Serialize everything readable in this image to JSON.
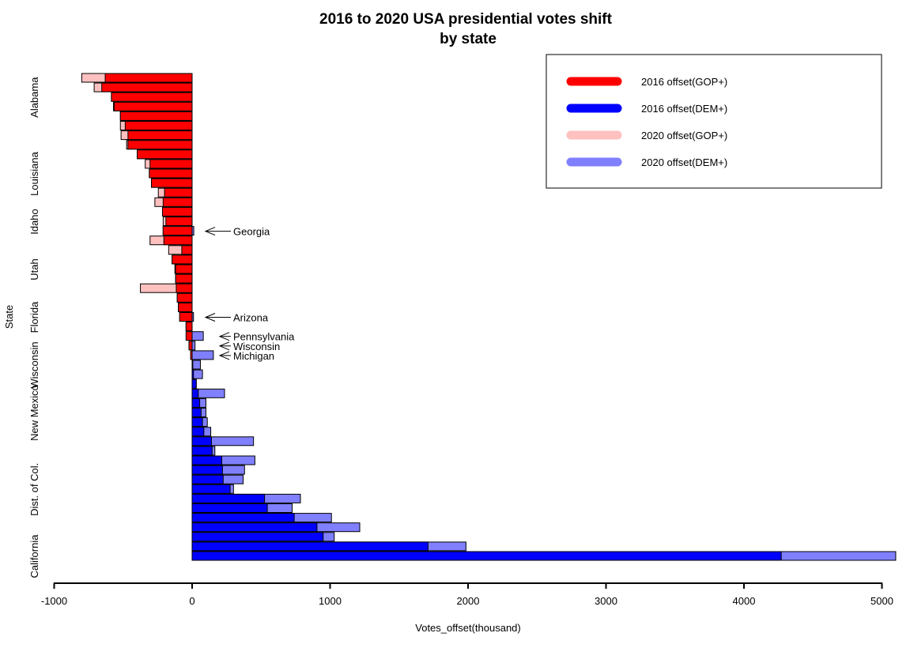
{
  "chart_data": {
    "type": "bar",
    "orientation": "horizontal",
    "title": "2016 to 2020 USA presidential votes shift",
    "subtitle": "by state",
    "xlabel": "Votes_offset(thousand)",
    "ylabel": "State",
    "xlim": [
      -1000,
      5100
    ],
    "xticks": [
      "-1000",
      "0",
      "1000",
      "2000",
      "3000",
      "4000",
      "5000"
    ],
    "xtick_values": [
      -1000,
      0,
      1000,
      2000,
      3000,
      4000,
      5000
    ],
    "ytick_labels": [
      {
        "label": "Alabama",
        "row": 2
      },
      {
        "label": "Louisiana",
        "row": 10
      },
      {
        "label": "Idaho",
        "row": 15
      },
      {
        "label": "Utah",
        "row": 20
      },
      {
        "label": "Florida",
        "row": 25
      },
      {
        "label": "Wisconsin",
        "row": 30
      },
      {
        "label": "New Mexico",
        "row": 35
      },
      {
        "label": "Dist. of Col.",
        "row": 43
      },
      {
        "label": "California",
        "row": 50
      }
    ],
    "series": [
      {
        "name": "2016 offset(GOP+)",
        "color": "#ff0000"
      },
      {
        "name": "2016 offset(DEM+)",
        "color": "#0000ff"
      },
      {
        "name": "2020 offset(GOP+)",
        "color": "#ffc0c0"
      },
      {
        "name": "2020 offset(DEM+)",
        "color": "#8080ff"
      }
    ],
    "bars": [
      {
        "v2016": -630,
        "v2020": -800
      },
      {
        "v2016": -655,
        "v2020": -710
      },
      {
        "v2016": -585,
        "v2020": -585
      },
      {
        "v2016": -565,
        "v2020": -570
      },
      {
        "v2016": -520,
        "v2020": -520
      },
      {
        "v2016": -485,
        "v2020": -520
      },
      {
        "v2016": -465,
        "v2020": -515
      },
      {
        "v2016": -465,
        "v2020": -475
      },
      {
        "v2016": -398,
        "v2020": -398
      },
      {
        "v2016": -305,
        "v2020": -340
      },
      {
        "v2016": -310,
        "v2020": -310
      },
      {
        "v2016": -295,
        "v2020": -295
      },
      {
        "v2016": -200,
        "v2020": -245
      },
      {
        "v2016": -210,
        "v2020": -270
      },
      {
        "v2016": -215,
        "v2020": -215
      },
      {
        "v2016": -190,
        "v2020": -210
      },
      {
        "v2016": -211,
        "v2020": 12
      },
      {
        "v2016": -205,
        "v2020": -305
      },
      {
        "v2016": -75,
        "v2020": -170
      },
      {
        "v2016": -145,
        "v2020": -145
      },
      {
        "v2016": -120,
        "v2020": -125
      },
      {
        "v2016": -119,
        "v2020": -120
      },
      {
        "v2016": -115,
        "v2020": -375
      },
      {
        "v2016": -108,
        "v2020": -108
      },
      {
        "v2016": -100,
        "v2020": -100
      },
      {
        "v2016": -91,
        "v2020": 10
      },
      {
        "v2016": -44,
        "v2020": -44
      },
      {
        "v2016": -44,
        "v2020": 81
      },
      {
        "v2016": -23,
        "v2020": 21
      },
      {
        "v2016": -11,
        "v2020": 154
      },
      {
        "v2016": 5,
        "v2020": 60
      },
      {
        "v2016": 10,
        "v2020": 75
      },
      {
        "v2016": 30,
        "v2020": 30
      },
      {
        "v2016": 45,
        "v2020": 235
      },
      {
        "v2016": 55,
        "v2020": 100
      },
      {
        "v2016": 65,
        "v2020": 100
      },
      {
        "v2016": 75,
        "v2020": 110
      },
      {
        "v2016": 85,
        "v2020": 135
      },
      {
        "v2016": 140,
        "v2020": 445
      },
      {
        "v2016": 145,
        "v2020": 165
      },
      {
        "v2016": 215,
        "v2020": 455
      },
      {
        "v2016": 220,
        "v2020": 380
      },
      {
        "v2016": 225,
        "v2020": 370
      },
      {
        "v2016": 275,
        "v2020": 300
      },
      {
        "v2016": 525,
        "v2020": 785
      },
      {
        "v2016": 545,
        "v2020": 725
      },
      {
        "v2016": 740,
        "v2020": 1010
      },
      {
        "v2016": 905,
        "v2020": 1215
      },
      {
        "v2016": 950,
        "v2020": 1030
      },
      {
        "v2016": 1710,
        "v2020": 1985
      },
      {
        "v2016": 4270,
        "v2020": 5100
      }
    ],
    "annotations": [
      {
        "label": "Georgia",
        "row": 16
      },
      {
        "label": "Arizona",
        "row": 25
      },
      {
        "label": "Pennsylvania",
        "row": 27
      },
      {
        "label": "Wisconsin",
        "row": 28
      },
      {
        "label": "Michigan",
        "row": 29
      }
    ],
    "legend": "top-right"
  }
}
